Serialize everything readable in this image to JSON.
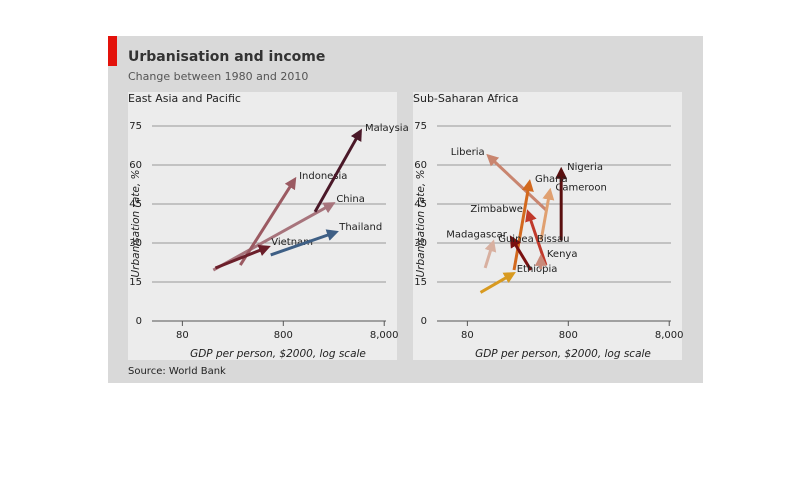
{
  "header": {
    "title": "Urbanisation and income",
    "subtitle": "Change between 1980 and 2010",
    "source": "Source: World Bank"
  },
  "chart_data": [
    {
      "type": "arrow",
      "title": "East Asia and Pacific",
      "y_label": "Urbanisation rate, %",
      "x_label": "GDP per person, $2000, log scale",
      "xscale": "log",
      "xlim": [
        40,
        10000
      ],
      "xticks": [
        80,
        800,
        {
          "value": 8000,
          "label": "8,000"
        }
      ],
      "ylim": [
        0,
        75
      ],
      "yticks": [
        0,
        15,
        30,
        45,
        60,
        75
      ],
      "grid": true,
      "series": [
        {
          "name": "China",
          "color": "#a7747c",
          "x": [
            162,
            2340
          ],
          "values": [
            19.6,
            44.6
          ]
        },
        {
          "name": "Indonesia",
          "color": "#9b5a62",
          "x": [
            300,
            1000
          ],
          "values": [
            21.5,
            53.5
          ]
        },
        {
          "name": "Vietnam",
          "color": "#6b1f2a",
          "x": [
            170,
            530
          ],
          "values": [
            20.4,
            28
          ]
        },
        {
          "name": "Thailand",
          "color": "#3e5f85",
          "x": [
            600,
            2500
          ],
          "values": [
            25.4,
            33.8
          ]
        },
        {
          "name": "Malaysia",
          "color": "#4a1828",
          "x": [
            1650,
            4500
          ],
          "values": [
            42,
            72
          ]
        }
      ]
    },
    {
      "type": "arrow",
      "title": "Sub-Saharan Africa",
      "y_label": "Urbanisation rate, %",
      "x_label": "GDP per person, $2000, log scale",
      "xscale": "log",
      "xlim": [
        40,
        10000
      ],
      "xticks": [
        80,
        800,
        {
          "value": 8000,
          "label": "8,000"
        }
      ],
      "ylim": [
        0,
        75
      ],
      "yticks": [
        0,
        15,
        30,
        45,
        60,
        75
      ],
      "grid": true,
      "series": [
        {
          "name": "Liberia",
          "color": "#c9856f",
          "x": [
            482,
            136
          ],
          "values": [
            42.7,
            62.7
          ]
        },
        {
          "name": "Cameroon",
          "color": "#e0a070",
          "x": [
            430,
            520
          ],
          "values": [
            31,
            49
          ]
        },
        {
          "name": "Nigeria",
          "color": "#5a0f0f",
          "x": [
            680,
            680
          ],
          "values": [
            31,
            57
          ]
        },
        {
          "name": "Zimbabwe",
          "color": "#c0392b",
          "x": [
            480,
            326
          ],
          "values": [
            21.5,
            40.8
          ]
        },
        {
          "name": "Ghana",
          "color": "#d2691e",
          "x": [
            232,
            326
          ],
          "values": [
            19.6,
            52.3
          ]
        },
        {
          "name": "Madagascar",
          "color": "#7a1010",
          "x": [
            340,
            226
          ],
          "values": [
            19.6,
            31
          ]
        },
        {
          "name": "Guinea Bissau",
          "color": "#d8b0a0",
          "x": [
            120,
            141
          ],
          "values": [
            20.4,
            29.2
          ]
        },
        {
          "name": "Ethiopia",
          "color": "#d89a20",
          "x": [
            108,
            215
          ],
          "values": [
            11,
            17.7
          ]
        },
        {
          "name": "Kenya",
          "color": "#c98a7a",
          "x": [
            428,
            428
          ],
          "values": [
            20,
            23.5
          ]
        }
      ]
    }
  ]
}
